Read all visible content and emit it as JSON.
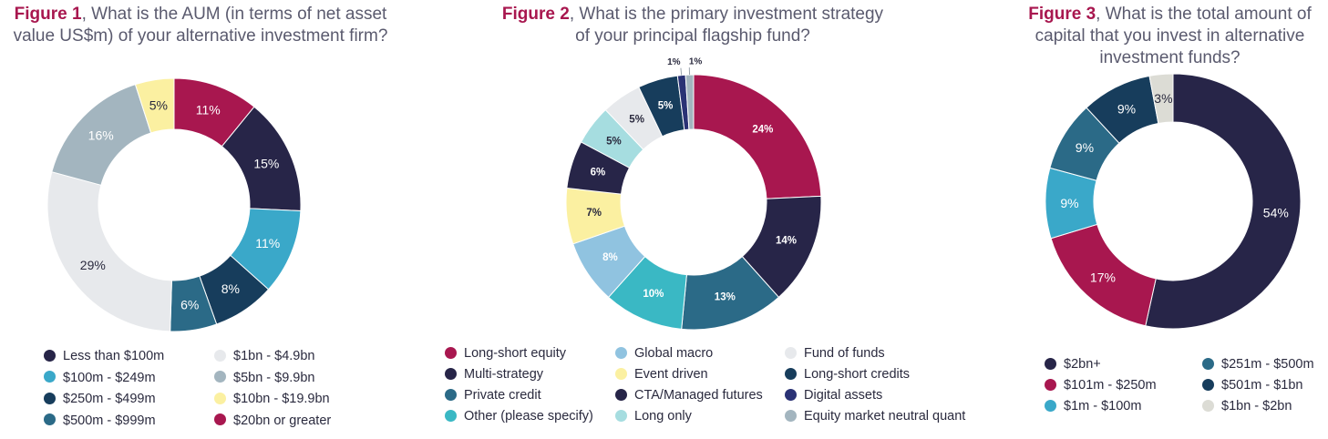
{
  "chart_data": [
    {
      "type": "pie",
      "title_label": "Figure 1",
      "title_text": ", What is the AUM (in terms of net asset value US$m) of your alternative investment firm?",
      "slices": [
        {
          "label": "$20bn or greater",
          "value": 11,
          "display": "11%",
          "color": "#a8174f",
          "text_color": "#ffffff"
        },
        {
          "label": "Less than $100m",
          "value": 15,
          "display": "15%",
          "color": "#272548",
          "text_color": "#ffffff"
        },
        {
          "label": "$100m - $249m",
          "value": 11,
          "display": "11%",
          "color": "#3aa8c9",
          "text_color": "#ffffff"
        },
        {
          "label": "$250m - $499m",
          "value": 8,
          "display": "8%",
          "color": "#173d5c",
          "text_color": "#ffffff"
        },
        {
          "label": "$500m - $999m",
          "value": 6,
          "display": "6%",
          "color": "#2b6a87",
          "text_color": "#ffffff"
        },
        {
          "label": "$1bn - $4.9bn",
          "value": 29,
          "display": "29%",
          "color": "#e7e9ec",
          "text_color": "#2a2a3e"
        },
        {
          "label": "$5bn - $9.9bn",
          "value": 16,
          "display": "16%",
          "color": "#a3b5bf",
          "text_color": "#ffffff"
        },
        {
          "label": "$10bn - $19.9bn",
          "value": 5,
          "display": "5%",
          "color": "#fbf0a1",
          "text_color": "#2a2a3e"
        }
      ],
      "legend": [
        {
          "label": "Less than $100m",
          "color": "#272548"
        },
        {
          "label": "$100m - $249m",
          "color": "#3aa8c9"
        },
        {
          "label": "$250m - $499m",
          "color": "#173d5c"
        },
        {
          "label": "$500m - $999m",
          "color": "#2b6a87"
        },
        {
          "label": "$1bn - $4.9bn",
          "color": "#e7e9ec"
        },
        {
          "label": "$5bn - $9.9bn",
          "color": "#a3b5bf"
        },
        {
          "label": "$10bn - $19.9bn",
          "color": "#fbf0a1"
        },
        {
          "label": "$20bn or greater",
          "color": "#a8174f"
        }
      ]
    },
    {
      "type": "pie",
      "title_label": "Figure 2",
      "title_text": ", What is the primary investment strategy of your principal flagship fund?",
      "slices": [
        {
          "label": "Long-short equity",
          "value": 24,
          "display": "24%",
          "color": "#a8174f",
          "text_color": "#ffffff"
        },
        {
          "label": "Multi-strategy",
          "value": 14,
          "display": "14%",
          "color": "#272548",
          "text_color": "#ffffff"
        },
        {
          "label": "Private credit",
          "value": 13,
          "display": "13%",
          "color": "#2b6a87",
          "text_color": "#ffffff"
        },
        {
          "label": "Other (please specify)",
          "value": 10,
          "display": "10%",
          "color": "#3ab8c4",
          "text_color": "#ffffff"
        },
        {
          "label": "Global macro",
          "value": 8,
          "display": "8%",
          "color": "#90c3e0",
          "text_color": "#ffffff"
        },
        {
          "label": "Event driven",
          "value": 7,
          "display": "7%",
          "color": "#fbf0a1",
          "text_color": "#2a2a3e"
        },
        {
          "label": "CTA/Managed futures",
          "value": 6,
          "display": "6%",
          "color": "#272548",
          "text_color": "#ffffff"
        },
        {
          "label": "Long only",
          "value": 5,
          "display": "5%",
          "color": "#a6dde0",
          "text_color": "#2a2a3e"
        },
        {
          "label": "Fund of funds",
          "value": 5,
          "display": "5%",
          "color": "#e7e9ec",
          "text_color": "#2a2a3e"
        },
        {
          "label": "Long-short credits",
          "value": 5,
          "display": "5%",
          "color": "#173d5c",
          "text_color": "#ffffff"
        },
        {
          "label": "Digital assets",
          "value": 1,
          "display": "1%",
          "color": "#2a3275",
          "text_color": "#2a2a3e"
        },
        {
          "label": "Equity market neutral quant",
          "value": 1,
          "display": "1%",
          "color": "#a3b5bf",
          "text_color": "#2a2a3e"
        }
      ],
      "legend": [
        {
          "label": "Long-short equity",
          "color": "#a8174f"
        },
        {
          "label": "Multi-strategy",
          "color": "#272548"
        },
        {
          "label": "Private credit",
          "color": "#2b6a87"
        },
        {
          "label": "Other (please specify)",
          "color": "#3ab8c4"
        },
        {
          "label": "Global macro",
          "color": "#90c3e0"
        },
        {
          "label": "Event driven",
          "color": "#fbf0a1"
        },
        {
          "label": "CTA/Managed futures",
          "color": "#272548"
        },
        {
          "label": "Long only",
          "color": "#a6dde0"
        },
        {
          "label": "Fund of funds",
          "color": "#e7e9ec"
        },
        {
          "label": "Long-short credits",
          "color": "#173d5c"
        },
        {
          "label": "Digital assets",
          "color": "#2a3275"
        },
        {
          "label": "Equity market neutral quant",
          "color": "#a3b5bf"
        }
      ]
    },
    {
      "type": "pie",
      "title_label": "Figure 3",
      "title_text": ", What is the total amount of capital that you invest in alternative investment funds?",
      "slices": [
        {
          "label": "$2bn+",
          "value": 54,
          "display": "54%",
          "color": "#272548",
          "text_color": "#ffffff"
        },
        {
          "label": "$101m - $250m",
          "value": 17,
          "display": "17%",
          "color": "#a8174f",
          "text_color": "#ffffff"
        },
        {
          "label": "$1m - $100m",
          "value": 9,
          "display": "9%",
          "color": "#3aa8c9",
          "text_color": "#ffffff"
        },
        {
          "label": "$251m - $500m",
          "value": 9,
          "display": "9%",
          "color": "#2b6a87",
          "text_color": "#ffffff"
        },
        {
          "label": "$501m - $1bn",
          "value": 9,
          "display": "9%",
          "color": "#173d5c",
          "text_color": "#ffffff"
        },
        {
          "label": "$1bn - $2bn",
          "value": 3,
          "display": "3%",
          "color": "#dcdcd5",
          "text_color": "#2a2a3e"
        }
      ],
      "legend": [
        {
          "label": "$2bn+",
          "color": "#272548"
        },
        {
          "label": "$101m - $250m",
          "color": "#a8174f"
        },
        {
          "label": "$1m - $100m",
          "color": "#3aa8c9"
        },
        {
          "label": "$251m - $500m",
          "color": "#2b6a87"
        },
        {
          "label": "$501m - $1bn",
          "color": "#173d5c"
        },
        {
          "label": "$1bn - $2bn",
          "color": "#dcdcd5"
        }
      ]
    }
  ]
}
